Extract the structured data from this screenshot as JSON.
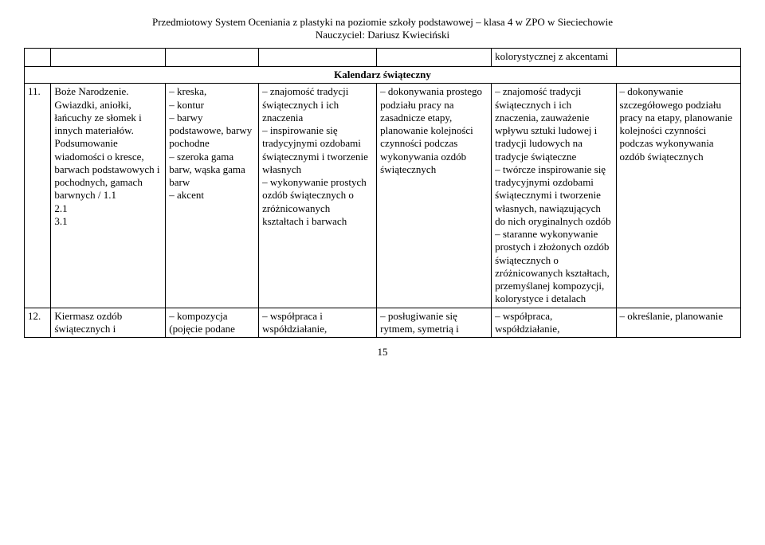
{
  "header": {
    "line1": "Przedmiotowy System Oceniania z plastyki na poziomie szkoły podstawowej – klasa 4 w ZPO w Sieciechowie",
    "line2": "Nauczyciel: Dariusz Kwieciński"
  },
  "topRow": {
    "c5": "kolorystycznej z akcentami"
  },
  "sectionTitle": "Kalendarz świąteczny",
  "row11": {
    "num": "11.",
    "c1": "Boże Narodzenie. Gwiazdki, aniołki, łańcuchy ze słomek i innych materiałów. Podsumowanie wiadomości o kresce, barwach podstawowych i pochodnych, gamach barwnych / 1.1\n2.1\n3.1",
    "c2": "– kreska,\n– kontur\n– barwy podstawowe, barwy pochodne\n– szeroka gama barw, wąska gama barw\n– akcent",
    "c3": "– znajomość tradycji świątecznych i ich znaczenia\n– inspirowanie się tradycyjnymi ozdobami świątecznymi i tworzenie własnych\n– wykonywanie prostych ozdób świątecznych o zróżnicowanych kształtach i barwach",
    "c4": "– dokonywania prostego podziału pracy na zasadnicze etapy, planowanie kolejności czynności podczas wykonywania ozdób świątecznych",
    "c5": "– znajomość tradycji świątecznych i ich znaczenia, zauważenie wpływu sztuki ludowej i tradycji ludowych na tradycje świąteczne\n– twórcze inspirowanie się tradycyjnymi ozdobami świątecznymi i tworzenie własnych, nawiązujących do nich oryginalnych ozdób\n– staranne wykonywanie prostych i złożonych ozdób świątecznych o zróżnicowanych kształtach, przemyślanej kompozycji, kolorystyce i detalach",
    "c6": "– dokonywanie szczegółowego podziału pracy na etapy, planowanie kolejności czynności podczas wykonywania ozdób świątecznych"
  },
  "row12": {
    "num": "12.",
    "c1": "Kiermasz ozdób świątecznych i",
    "c2": "– kompozycja (pojęcie podane",
    "c3": "– współpraca i współdziałanie,",
    "c4": "– posługiwanie się rytmem, symetrią i",
    "c5": "– współpraca, współdziałanie,",
    "c6": "– określanie, planowanie"
  },
  "pageNumber": "15"
}
